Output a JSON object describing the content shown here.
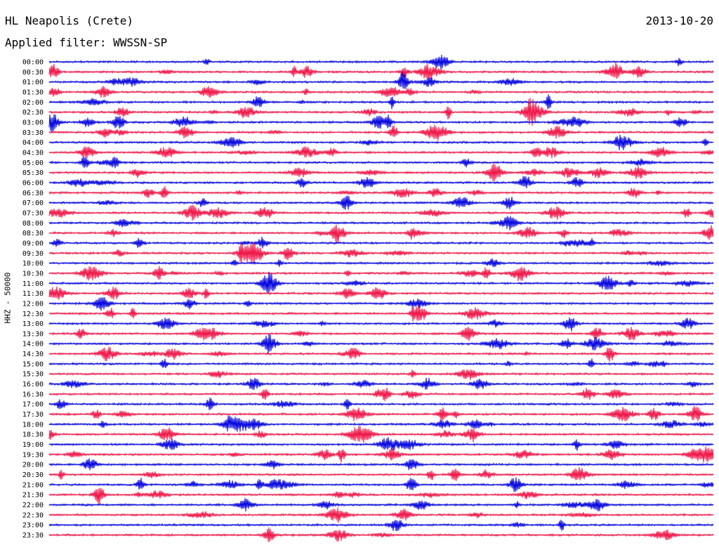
{
  "chart_data": {
    "type": "line",
    "title": "HL Neapolis (Crete)",
    "date": "2013-10-20",
    "subtitle": "Applied filter: WWSSN-SP",
    "ylabel": "HHZ - 50000",
    "colors": [
      "#0000dd",
      "#ee1144"
    ],
    "rows": [
      "00:00",
      "00:30",
      "01:00",
      "01:30",
      "02:00",
      "02:30",
      "03:00",
      "03:30",
      "04:00",
      "04:30",
      "05:00",
      "05:30",
      "06:00",
      "06:30",
      "07:00",
      "07:30",
      "08:00",
      "08:30",
      "09:00",
      "09:30",
      "10:00",
      "10:30",
      "11:00",
      "11:30",
      "12:00",
      "12:30",
      "13:00",
      "13:30",
      "14:00",
      "14:30",
      "15:00",
      "15:30",
      "16:00",
      "16:30",
      "17:00",
      "17:30",
      "18:00",
      "18:30",
      "19:00",
      "19:30",
      "20:00",
      "20:30",
      "21:00",
      "21:30",
      "22:00",
      "22:30",
      "23:00",
      "23:30"
    ],
    "grid": false
  }
}
